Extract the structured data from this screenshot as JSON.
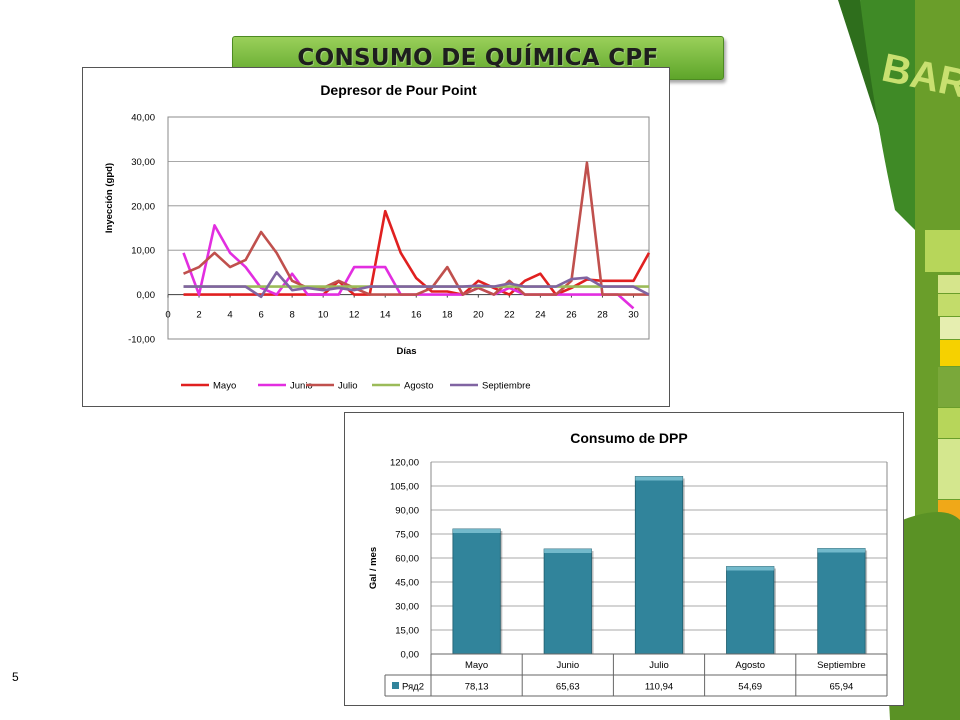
{
  "slide": {
    "title": "CONSUMO DE QUÍMICA CPF",
    "page_number": "5",
    "brand_text": "BARLIN"
  },
  "chart_data": [
    {
      "type": "line",
      "title": "Depresor de Pour Point",
      "xlabel": "Días",
      "ylabel": "Inyección (gpd)",
      "xlim": [
        0,
        31
      ],
      "ylim": [
        -10,
        40
      ],
      "xticks": [
        "0",
        "2",
        "4",
        "6",
        "8",
        "10",
        "12",
        "14",
        "16",
        "18",
        "20",
        "22",
        "24",
        "26",
        "28",
        "30"
      ],
      "yticks": [
        "40,00",
        "30,00",
        "20,00",
        "10,00",
        "0,00",
        "-10,00"
      ],
      "grid": true,
      "legend": "bottom",
      "series": [
        {
          "name": "Mayo",
          "color": "#e02020",
          "x": [
            1,
            2,
            3,
            4,
            5,
            6,
            7,
            8,
            9,
            10,
            11,
            12,
            13,
            14,
            15,
            16,
            17,
            18,
            19,
            20,
            21,
            22,
            23,
            24,
            25,
            26,
            27,
            28,
            29,
            30,
            31
          ],
          "y": [
            0,
            0,
            0,
            0,
            0,
            0,
            0,
            0,
            0,
            0,
            3,
            0,
            0,
            18.8,
            9.4,
            3.7,
            0.7,
            0.7,
            0,
            3.1,
            1.5,
            0,
            3.1,
            4.7,
            0,
            1.5,
            3.4,
            3.1,
            3.1,
            3.1,
            9.4
          ]
        },
        {
          "name": "Junio",
          "color": "#e22ee0",
          "x": [
            1,
            2,
            3,
            4,
            5,
            6,
            7,
            8,
            9,
            10,
            11,
            12,
            13,
            14,
            15,
            16,
            17,
            18,
            19,
            20,
            21,
            22,
            23,
            24,
            25,
            26,
            27,
            28,
            29,
            30
          ],
          "y": [
            9.4,
            0,
            15.6,
            9.4,
            6.2,
            1.5,
            0,
            4.7,
            0,
            0,
            0,
            6.2,
            6.2,
            6.2,
            0,
            0,
            0,
            0,
            0,
            1.5,
            0,
            1.5,
            0,
            0,
            0,
            0,
            0,
            0,
            0,
            -3.1
          ]
        },
        {
          "name": "Julio",
          "color": "#c0504d",
          "x": [
            1,
            2,
            3,
            4,
            5,
            6,
            7,
            8,
            9,
            10,
            11,
            12,
            13,
            14,
            15,
            16,
            17,
            18,
            19,
            20,
            21,
            22,
            23,
            24,
            25,
            26,
            27,
            28,
            29,
            30,
            31
          ],
          "y": [
            4.7,
            6.2,
            9.4,
            6.2,
            7.8,
            14.1,
            9.4,
            3.1,
            1.5,
            1.5,
            3.1,
            1.5,
            0,
            0,
            0,
            0,
            1.5,
            6.2,
            0,
            1.5,
            0,
            3.1,
            0,
            0,
            0,
            3.1,
            29.7,
            0,
            0,
            0,
            0
          ]
        },
        {
          "name": "Agosto",
          "color": "#9bbb59",
          "x": [
            1,
            2,
            3,
            4,
            5,
            6,
            7,
            8,
            9,
            10,
            11,
            12,
            13,
            14,
            15,
            16,
            17,
            18,
            19,
            20,
            21,
            22,
            23,
            24,
            25,
            26,
            27,
            28,
            29,
            30,
            31
          ],
          "y": [
            1.8,
            1.8,
            1.8,
            1.8,
            1.8,
            1.8,
            1.8,
            1.8,
            1.8,
            1.8,
            1.8,
            1.8,
            1.8,
            1.8,
            1.8,
            1.8,
            1.8,
            1.8,
            1.8,
            1.8,
            1.8,
            1.8,
            1.8,
            1.8,
            1.8,
            1.8,
            1.8,
            1.8,
            1.8,
            1.8,
            1.8
          ]
        },
        {
          "name": "Septiembre",
          "color": "#8064a2",
          "x": [
            1,
            2,
            3,
            4,
            5,
            6,
            7,
            8,
            9,
            10,
            11,
            12,
            13,
            14,
            15,
            16,
            17,
            18,
            19,
            20,
            21,
            22,
            23,
            24,
            25,
            26,
            27,
            28,
            29,
            30,
            31
          ],
          "y": [
            1.8,
            1.8,
            1.8,
            1.8,
            1.8,
            -0.5,
            5,
            1,
            1.5,
            1,
            1.5,
            1,
            1.8,
            1.8,
            1.8,
            1.8,
            1.8,
            1.8,
            1.8,
            2,
            1.8,
            2.5,
            1.8,
            1.8,
            1.8,
            3.5,
            3.8,
            1.8,
            1.8,
            1.8,
            0
          ]
        }
      ]
    },
    {
      "type": "bar",
      "title": "Consumo de DPP",
      "xlabel": "",
      "ylabel": "Gal / mes",
      "ylim": [
        0,
        120
      ],
      "yticks": [
        "120,00",
        "105,00",
        "90,00",
        "75,00",
        "60,00",
        "45,00",
        "30,00",
        "15,00",
        "0,00"
      ],
      "grid": true,
      "color": "#31849b",
      "categories": [
        "Mayo",
        "Junio",
        "Julio",
        "Agosto",
        "Septiembre"
      ],
      "series": [
        {
          "name": "Ряд2",
          "values": [
            78.13,
            65.63,
            110.94,
            54.69,
            65.94
          ],
          "labels": [
            "78,13",
            "65,63",
            "110,94",
            "54,69",
            "65,94"
          ]
        }
      ]
    }
  ]
}
